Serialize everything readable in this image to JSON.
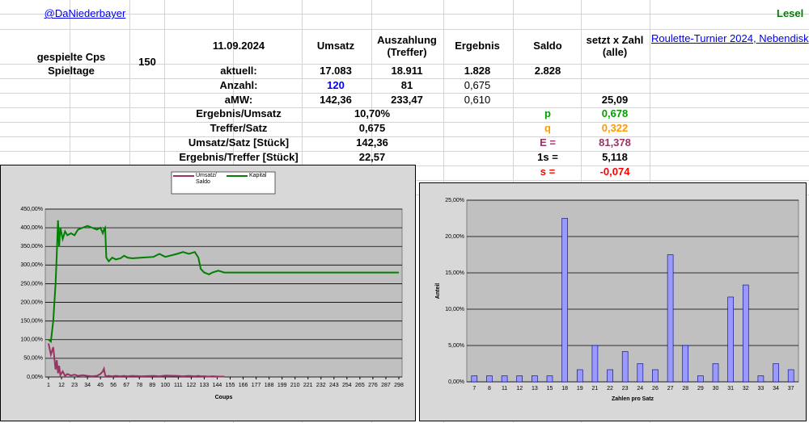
{
  "sheet": {
    "handle": "@DaNiederbayer",
    "corner": "Lesel",
    "link": "Roulette-Turnier 2024, Nebendisk",
    "played_label": "gespielte Cps",
    "days_label": "Spieltage",
    "played": "150",
    "columns": [
      "11.09.2024",
      "Umsatz",
      "Auszahlung (Treffer)",
      "Ergebnis",
      "Saldo",
      "setzt x Zahl (alle)"
    ],
    "rows": [
      [
        "aktuell:",
        "17.083",
        "18.911",
        "1.828",
        "2.828",
        null
      ],
      [
        "Anzahl:",
        "120",
        "81",
        "0,675",
        null,
        null
      ],
      [
        "aMW:",
        "142,36",
        "233,47",
        "0,610",
        null,
        "25,09"
      ]
    ],
    "stats": [
      {
        "label": "Ergebnis/Umsatz",
        "value": "10,70%",
        "symbol": "p",
        "result": "0,678",
        "color": "#00a000"
      },
      {
        "label": "Treffer/Satz",
        "value": "0,675",
        "symbol": "q",
        "result": "0,322",
        "color": "#ff9900"
      },
      {
        "label": "Umsatz/Satz [Stück]",
        "value": "142,36",
        "symbol": "E =",
        "result": "81,378",
        "color": "#993366"
      },
      {
        "label": "Ergebnis/Treffer [Stück]",
        "value": "22,57",
        "symbol": "1s =",
        "result": "5,118",
        "color": "#000000"
      },
      {
        "symbol": "s =",
        "result": "-0,074",
        "color": "#ff0000"
      }
    ]
  },
  "chart_data": [
    {
      "type": "line",
      "xlabel": "Coups",
      "x": [
        1,
        3,
        5,
        7,
        8,
        9,
        10,
        11,
        13,
        15,
        17,
        20,
        23,
        26,
        30,
        34,
        38,
        42,
        45,
        47,
        48,
        49,
        50,
        52,
        55,
        58,
        62,
        65,
        68,
        72,
        80,
        90,
        95,
        100,
        110,
        115,
        120,
        125,
        128,
        130,
        133,
        137,
        140,
        145,
        150,
        160,
        200,
        250,
        298
      ],
      "xlim": [
        1,
        298
      ],
      "xticks": [
        1,
        12,
        23,
        34,
        45,
        56,
        67,
        78,
        89,
        100,
        111,
        122,
        133,
        144,
        155,
        166,
        177,
        188,
        199,
        210,
        221,
        232,
        243,
        254,
        265,
        276,
        287,
        298
      ],
      "ylim": [
        0,
        450
      ],
      "yticks": [
        {
          "value": 0,
          "label": "0,00%"
        },
        {
          "value": 50,
          "label": "50,00%"
        },
        {
          "value": 100,
          "label": "100,00%"
        },
        {
          "value": 150,
          "label": "150,00%"
        },
        {
          "value": 200,
          "label": "200,00%"
        },
        {
          "value": 250,
          "label": "250,00%"
        },
        {
          "value": 300,
          "label": "300,00%"
        },
        {
          "value": 350,
          "label": "350,00%"
        },
        {
          "value": 400,
          "label": "400,00%"
        },
        {
          "value": 450,
          "label": "450,00%"
        }
      ],
      "grid": true,
      "series": [
        {
          "name": "Umsatz/ Saldo",
          "color": "#993366",
          "values": [
            90,
            60,
            80,
            20,
            45,
            10,
            30,
            5,
            15,
            3,
            8,
            4,
            6,
            3,
            5,
            3,
            2,
            3,
            8,
            15,
            22,
            5,
            2,
            3,
            2,
            3,
            2,
            3,
            2,
            3,
            2,
            3,
            2,
            4,
            3,
            2,
            3,
            2,
            3,
            2,
            2,
            1,
            2,
            1,
            1,
            null,
            null,
            null,
            null
          ]
        },
        {
          "name": "Kapital",
          "color": "#008000",
          "values": [
            100,
            95,
            150,
            250,
            330,
            420,
            350,
            400,
            370,
            390,
            380,
            385,
            380,
            395,
            400,
            405,
            400,
            395,
            400,
            385,
            395,
            400,
            320,
            310,
            320,
            315,
            318,
            325,
            320,
            318,
            320,
            322,
            330,
            322,
            330,
            335,
            330,
            335,
            320,
            290,
            280,
            275,
            280,
            285,
            280,
            280,
            280,
            280,
            280
          ]
        }
      ]
    },
    {
      "type": "bar",
      "ylabel": "Anteil",
      "xlabel": "Zahlen pro Satz",
      "categories": [
        "7",
        "8",
        "11",
        "12",
        "13",
        "15",
        "18",
        "19",
        "21",
        "22",
        "23",
        "24",
        "26",
        "27",
        "28",
        "29",
        "30",
        "31",
        "32",
        "33",
        "34",
        "37"
      ],
      "values": [
        0.83,
        0.83,
        0.83,
        0.83,
        0.83,
        0.83,
        22.5,
        1.67,
        5.0,
        1.67,
        4.17,
        2.5,
        1.67,
        17.5,
        5.0,
        0.83,
        2.5,
        11.67,
        13.33,
        0.83,
        2.5,
        1.67
      ],
      "color": "#9999ff",
      "ylim": [
        0,
        25
      ],
      "yticks": [
        {
          "value": 0,
          "label": "0,00%"
        },
        {
          "value": 5,
          "label": "5,00%"
        },
        {
          "value": 10,
          "label": "10,00%"
        },
        {
          "value": 15,
          "label": "15,00%"
        },
        {
          "value": 20,
          "label": "20,00%"
        },
        {
          "value": 25,
          "label": "25,00%"
        }
      ],
      "grid": true
    }
  ]
}
